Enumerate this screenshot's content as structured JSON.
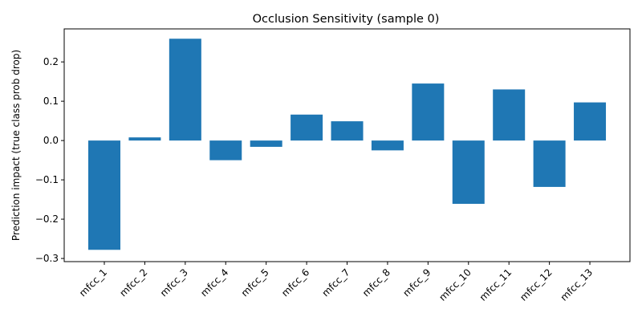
{
  "chart_data": {
    "type": "bar",
    "title": "Occlusion Sensitivity (sample 0)",
    "xlabel": "",
    "ylabel": "Prediction impact (true class prob drop)",
    "categories": [
      "mfcc_1",
      "mfcc_2",
      "mfcc_3",
      "mfcc_4",
      "mfcc_5",
      "mfcc_6",
      "mfcc_7",
      "mfcc_8",
      "mfcc_9",
      "mfcc_10",
      "mfcc_11",
      "mfcc_12",
      "mfcc_13"
    ],
    "values": [
      -0.278,
      0.008,
      0.259,
      -0.05,
      -0.016,
      0.066,
      0.049,
      -0.025,
      0.145,
      -0.161,
      0.13,
      -0.118,
      0.097
    ],
    "ylim": [
      -0.308,
      0.284
    ],
    "yticks": [
      -0.3,
      -0.2,
      -0.1,
      0.0,
      0.1,
      0.2
    ],
    "ytick_labels": [
      "−0.3",
      "−0.2",
      "−0.1",
      "0.0",
      "0.1",
      "0.2"
    ],
    "bar_color": "#1f77b4",
    "grid": false,
    "legend": "none"
  }
}
